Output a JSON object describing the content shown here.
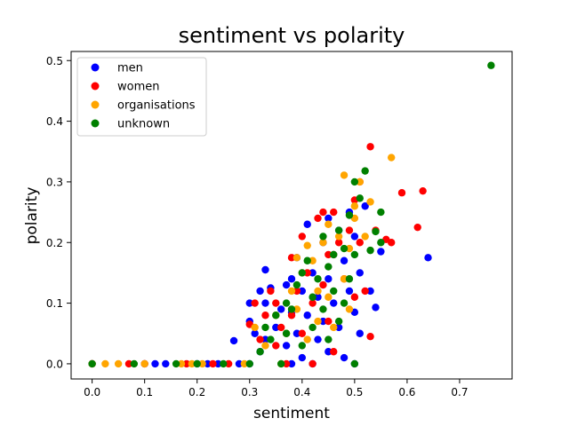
{
  "chart_data": {
    "type": "scatter",
    "title": "sentiment vs polarity",
    "xlabel": "sentiment",
    "ylabel": "polarity",
    "xlim": [
      -0.04,
      0.8
    ],
    "ylim": [
      -0.025,
      0.515
    ],
    "xticks": [
      0.0,
      0.1,
      0.2,
      0.3,
      0.4,
      0.5,
      0.6,
      0.7
    ],
    "yticks": [
      0.0,
      0.1,
      0.2,
      0.3,
      0.4,
      0.5
    ],
    "grid": false,
    "legend_position": "top-left",
    "series": [
      {
        "name": "men",
        "color": "#0000ff",
        "x": [
          0.0,
          0.1,
          0.12,
          0.14,
          0.2,
          0.22,
          0.24,
          0.27,
          0.28,
          0.3,
          0.3,
          0.3,
          0.31,
          0.32,
          0.32,
          0.33,
          0.33,
          0.33,
          0.34,
          0.35,
          0.36,
          0.37,
          0.37,
          0.38,
          0.38,
          0.38,
          0.39,
          0.39,
          0.4,
          0.4,
          0.41,
          0.41,
          0.42,
          0.42,
          0.43,
          0.43,
          0.44,
          0.44,
          0.45,
          0.45,
          0.45,
          0.46,
          0.46,
          0.47,
          0.47,
          0.48,
          0.48,
          0.49,
          0.49,
          0.5,
          0.5,
          0.5,
          0.51,
          0.51,
          0.52,
          0.53,
          0.54,
          0.55,
          0.64
        ],
        "y": [
          0.0,
          0.0,
          0.0,
          0.0,
          0.0,
          0.0,
          0.0,
          0.038,
          0.0,
          0.0,
          0.07,
          0.1,
          0.05,
          0.12,
          0.02,
          0.155,
          0.1,
          0.04,
          0.125,
          0.06,
          0.09,
          0.13,
          0.03,
          0.14,
          0.085,
          0.0,
          0.175,
          0.05,
          0.12,
          0.01,
          0.23,
          0.08,
          0.15,
          0.0,
          0.11,
          0.04,
          0.2,
          0.07,
          0.24,
          0.14,
          0.02,
          0.18,
          0.1,
          0.22,
          0.06,
          0.17,
          0.01,
          0.25,
          0.12,
          0.21,
          0.085,
          0.0,
          0.15,
          0.05,
          0.26,
          0.12,
          0.093,
          0.185,
          0.175
        ]
      },
      {
        "name": "women",
        "color": "#ff0000",
        "x": [
          0.0,
          0.07,
          0.1,
          0.18,
          0.23,
          0.26,
          0.3,
          0.31,
          0.32,
          0.33,
          0.34,
          0.35,
          0.35,
          0.36,
          0.37,
          0.38,
          0.38,
          0.39,
          0.4,
          0.4,
          0.41,
          0.42,
          0.42,
          0.43,
          0.44,
          0.44,
          0.45,
          0.45,
          0.46,
          0.46,
          0.47,
          0.48,
          0.49,
          0.5,
          0.5,
          0.51,
          0.51,
          0.52,
          0.53,
          0.53,
          0.54,
          0.56,
          0.57,
          0.59,
          0.62,
          0.63
        ],
        "y": [
          0.0,
          0.0,
          0.0,
          0.0,
          0.0,
          0.0,
          0.065,
          0.1,
          0.04,
          0.08,
          0.12,
          0.03,
          0.1,
          0.06,
          0.0,
          0.175,
          0.08,
          0.12,
          0.21,
          0.05,
          0.15,
          0.1,
          0.0,
          0.24,
          0.25,
          0.13,
          0.18,
          0.07,
          0.25,
          0.02,
          0.2,
          0.14,
          0.22,
          0.27,
          0.11,
          0.3,
          0.2,
          0.12,
          0.358,
          0.045,
          0.22,
          0.205,
          0.2,
          0.282,
          0.225,
          0.285
        ]
      },
      {
        "name": "organisations",
        "color": "#ffa500",
        "x": [
          0.0,
          0.025,
          0.05,
          0.1,
          0.17,
          0.19,
          0.21,
          0.29,
          0.31,
          0.33,
          0.35,
          0.36,
          0.37,
          0.38,
          0.39,
          0.39,
          0.4,
          0.41,
          0.41,
          0.42,
          0.43,
          0.43,
          0.44,
          0.45,
          0.45,
          0.46,
          0.46,
          0.47,
          0.48,
          0.48,
          0.49,
          0.49,
          0.5,
          0.5,
          0.51,
          0.52,
          0.53,
          0.57
        ],
        "y": [
          0.0,
          0.0,
          0.0,
          0.0,
          0.0,
          0.0,
          0.0,
          0.0,
          0.06,
          0.03,
          0.08,
          0.0,
          0.05,
          0.12,
          0.175,
          0.09,
          0.15,
          0.195,
          0.04,
          0.17,
          0.12,
          0.07,
          0.2,
          0.23,
          0.11,
          0.18,
          0.06,
          0.21,
          0.311,
          0.14,
          0.19,
          0.09,
          0.26,
          0.24,
          0.3,
          0.21,
          0.267,
          0.34
        ]
      },
      {
        "name": "unknown",
        "color": "#008000",
        "x": [
          0.0,
          0.08,
          0.16,
          0.2,
          0.25,
          0.3,
          0.32,
          0.33,
          0.34,
          0.35,
          0.36,
          0.37,
          0.37,
          0.38,
          0.39,
          0.4,
          0.4,
          0.41,
          0.42,
          0.42,
          0.43,
          0.44,
          0.44,
          0.45,
          0.45,
          0.46,
          0.46,
          0.47,
          0.47,
          0.48,
          0.48,
          0.49,
          0.49,
          0.5,
          0.5,
          0.5,
          0.51,
          0.52,
          0.53,
          0.54,
          0.55,
          0.55,
          0.76
        ],
        "y": [
          0.0,
          0.0,
          0.0,
          0.0,
          0.0,
          0.0,
          0.02,
          0.06,
          0.04,
          0.08,
          0.0,
          0.1,
          0.05,
          0.09,
          0.13,
          0.15,
          0.03,
          0.17,
          0.11,
          0.06,
          0.14,
          0.21,
          0.09,
          0.16,
          0.04,
          0.18,
          0.12,
          0.22,
          0.07,
          0.19,
          0.1,
          0.245,
          0.14,
          0.3,
          0.18,
          0.0,
          0.273,
          0.318,
          0.187,
          0.218,
          0.25,
          0.2,
          0.492
        ]
      }
    ]
  }
}
